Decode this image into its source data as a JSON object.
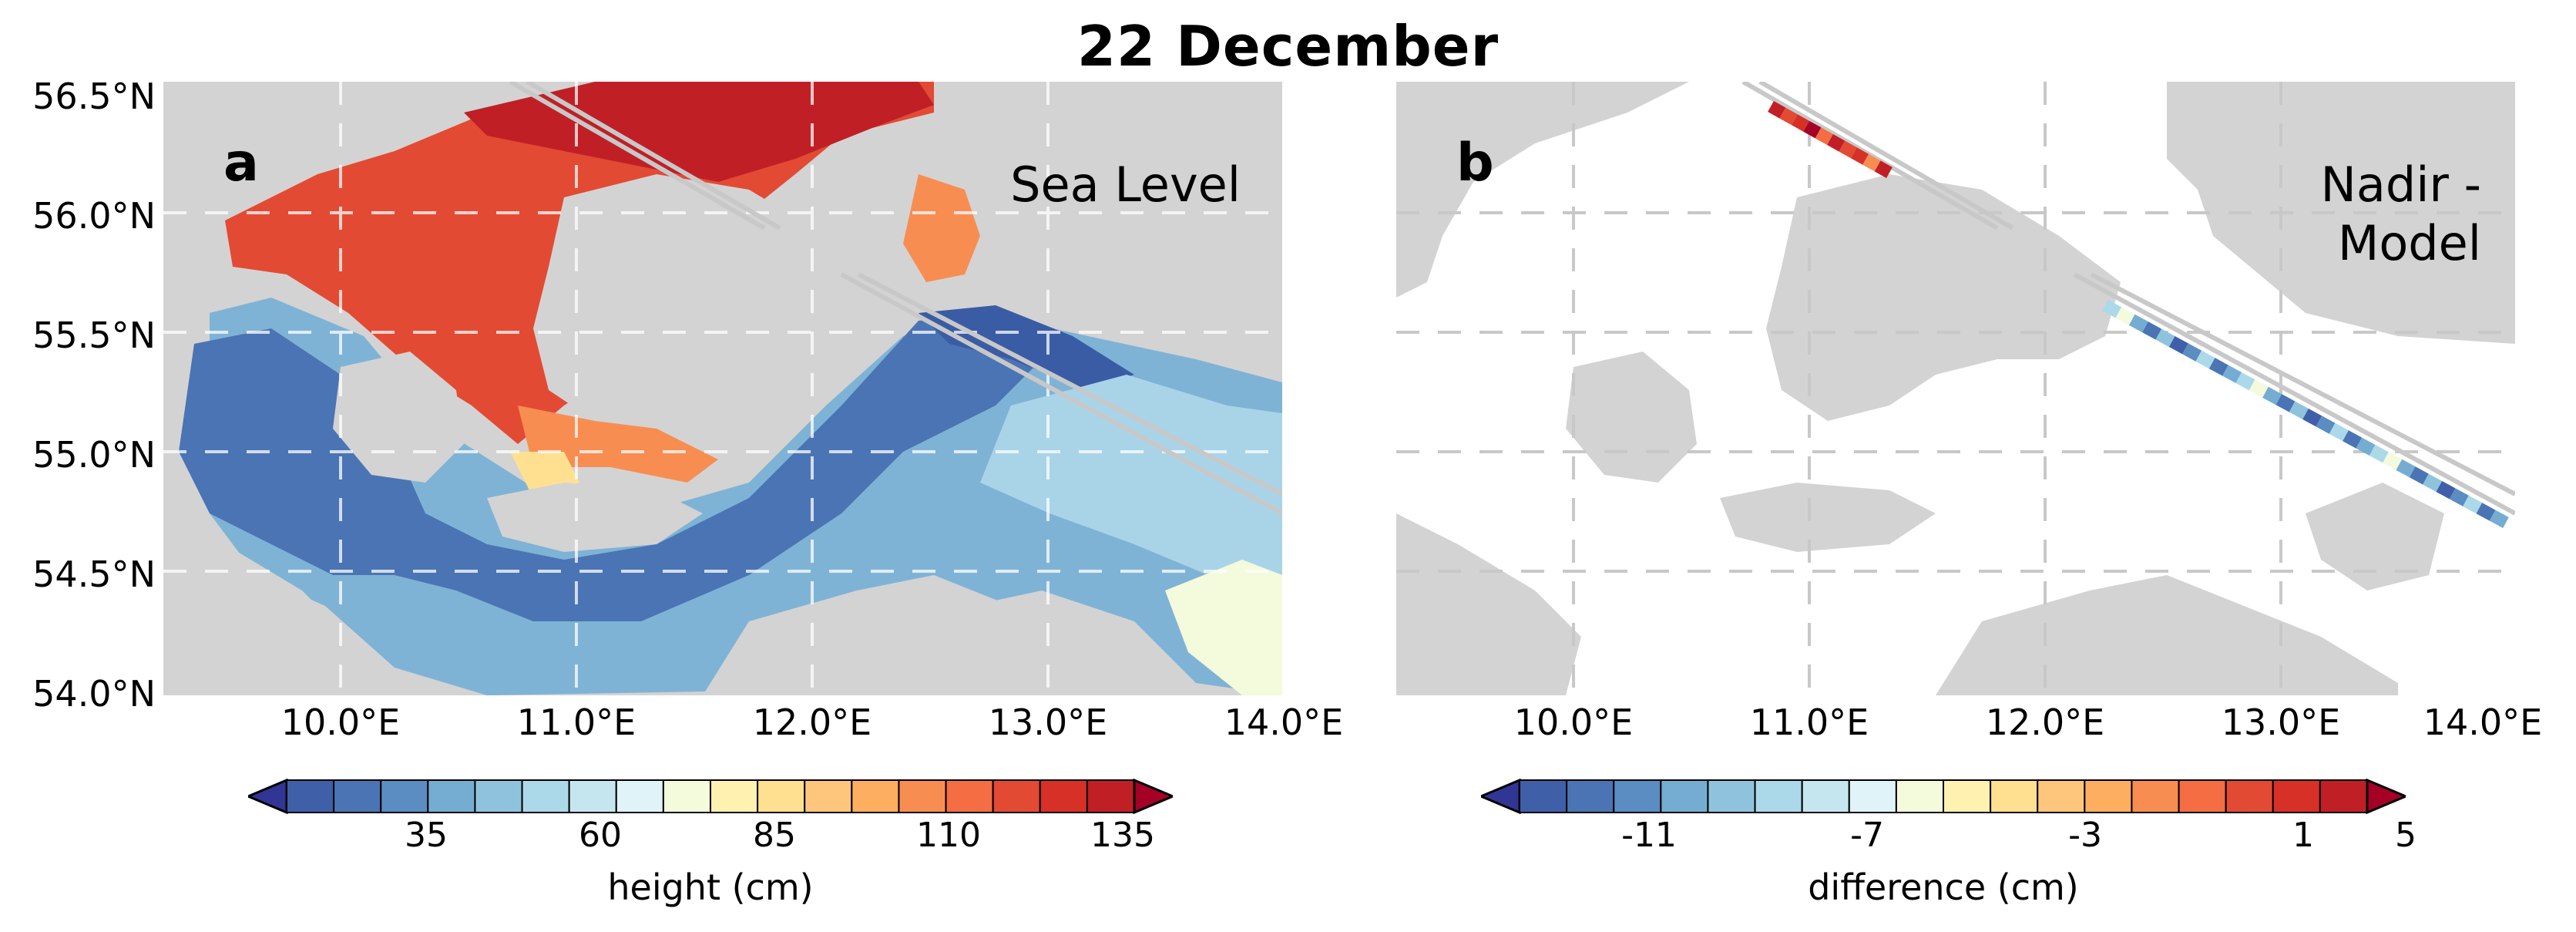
{
  "title": "22 December",
  "y_axis_ticks": [
    "56.5°N",
    "56.0°N",
    "55.5°N",
    "55.0°N",
    "54.5°N",
    "54.0°N"
  ],
  "x_axis_ticks": [
    "10.0°E",
    "11.0°E",
    "12.0°E",
    "13.0°E",
    "14.0°E"
  ],
  "panel_a": {
    "letter": "a",
    "label_lines": [
      "Sea Level"
    ],
    "colorbar": {
      "ticks": [
        "35",
        "60",
        "85",
        "110",
        "135"
      ],
      "label": "height (cm)"
    }
  },
  "panel_b": {
    "letter": "b",
    "label_lines": [
      "Nadir -",
      "Model"
    ],
    "colorbar": {
      "ticks": [
        "-11",
        "-7",
        "-3",
        "1",
        "5"
      ],
      "label": "difference (cm)"
    }
  },
  "colors": {
    "land": "#d3d3d3",
    "sea_white": "#ffffff",
    "cmap": [
      "#313695",
      "#3f5fa8",
      "#4a74b4",
      "#5b8cc2",
      "#74add1",
      "#8fc3dd",
      "#abd9e9",
      "#c6e6ef",
      "#e0f3f8",
      "#f4fadc",
      "#fff2b0",
      "#fee090",
      "#fdc67c",
      "#fdae61",
      "#f88d52",
      "#f46d43",
      "#e34a33",
      "#d73027",
      "#c01f26",
      "#a50026"
    ]
  }
}
